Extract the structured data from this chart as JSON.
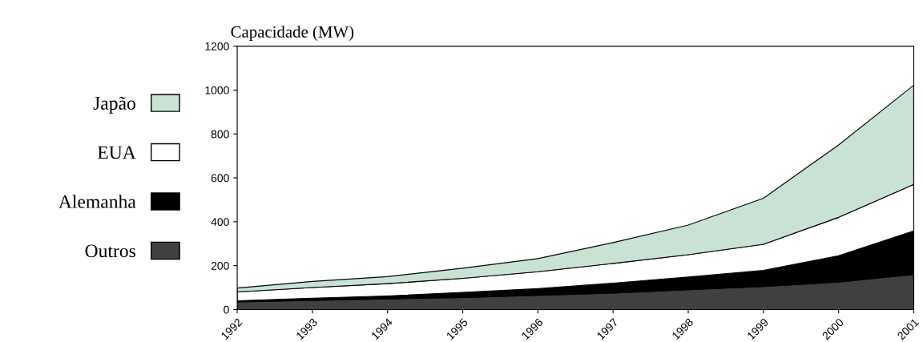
{
  "chart_data": {
    "type": "area",
    "stacked": true,
    "ylabel": "Capacidade (MW)",
    "categories": [
      "1992",
      "1993",
      "1994",
      "1995",
      "1996",
      "1997",
      "1998",
      "1999",
      "2000",
      "2001"
    ],
    "series": [
      {
        "name": "Outros",
        "color": "#404040",
        "values": [
          35,
          42,
          48,
          55,
          65,
          75,
          90,
          105,
          125,
          160
        ]
      },
      {
        "name": "Alemanha",
        "color": "#000000",
        "values": [
          5,
          10,
          14,
          23,
          30,
          45,
          58,
          73,
          120,
          198
        ]
      },
      {
        "name": "EUA",
        "color": "#ffffff",
        "values": [
          40,
          48,
          56,
          64,
          77,
          90,
          102,
          119,
          175,
          212
        ]
      },
      {
        "name": "Japão",
        "color": "#c8e2d4",
        "values": [
          18,
          28,
          32,
          46,
          60,
          95,
          135,
          210,
          330,
          452
        ]
      }
    ],
    "ylim": [
      0,
      1200
    ],
    "yticks": [
      0,
      200,
      400,
      600,
      800,
      1000,
      1200
    ],
    "grid": false,
    "legend": "left"
  }
}
